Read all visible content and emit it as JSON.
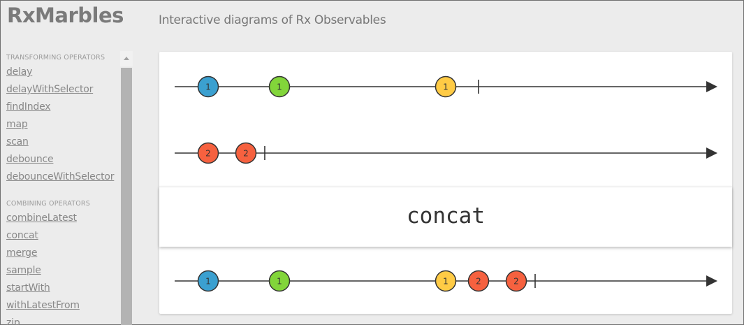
{
  "header": {
    "logo": "RxMarbles",
    "tagline": "Interactive diagrams of Rx Observables"
  },
  "sidebar": {
    "sections": [
      {
        "title": "TRANSFORMING OPERATORS",
        "items": [
          "delay",
          "delayWithSelector",
          "findIndex",
          "map",
          "scan",
          "debounce",
          "debounceWithSelector"
        ]
      },
      {
        "title": "COMBINING OPERATORS",
        "items": [
          "combineLatest",
          "concat",
          "merge",
          "sample",
          "startWith",
          "withLatestFrom",
          "zip"
        ]
      }
    ]
  },
  "diagram": {
    "operator": "concat",
    "colors": {
      "blue": "#3ba0d0",
      "green": "#82d53a",
      "yellow": "#ffcb45",
      "red": "#f6613f",
      "line": "#333333"
    },
    "input1": {
      "marbles": [
        {
          "label": "1",
          "color": "blue"
        },
        {
          "label": "1",
          "color": "green"
        },
        {
          "label": "1",
          "color": "yellow"
        }
      ]
    },
    "input2": {
      "marbles": [
        {
          "label": "2",
          "color": "red"
        },
        {
          "label": "2",
          "color": "red"
        }
      ]
    },
    "output": {
      "marbles": [
        {
          "label": "1",
          "color": "blue"
        },
        {
          "label": "1",
          "color": "green"
        },
        {
          "label": "1",
          "color": "yellow"
        },
        {
          "label": "2",
          "color": "red"
        },
        {
          "label": "2",
          "color": "red"
        }
      ]
    }
  }
}
